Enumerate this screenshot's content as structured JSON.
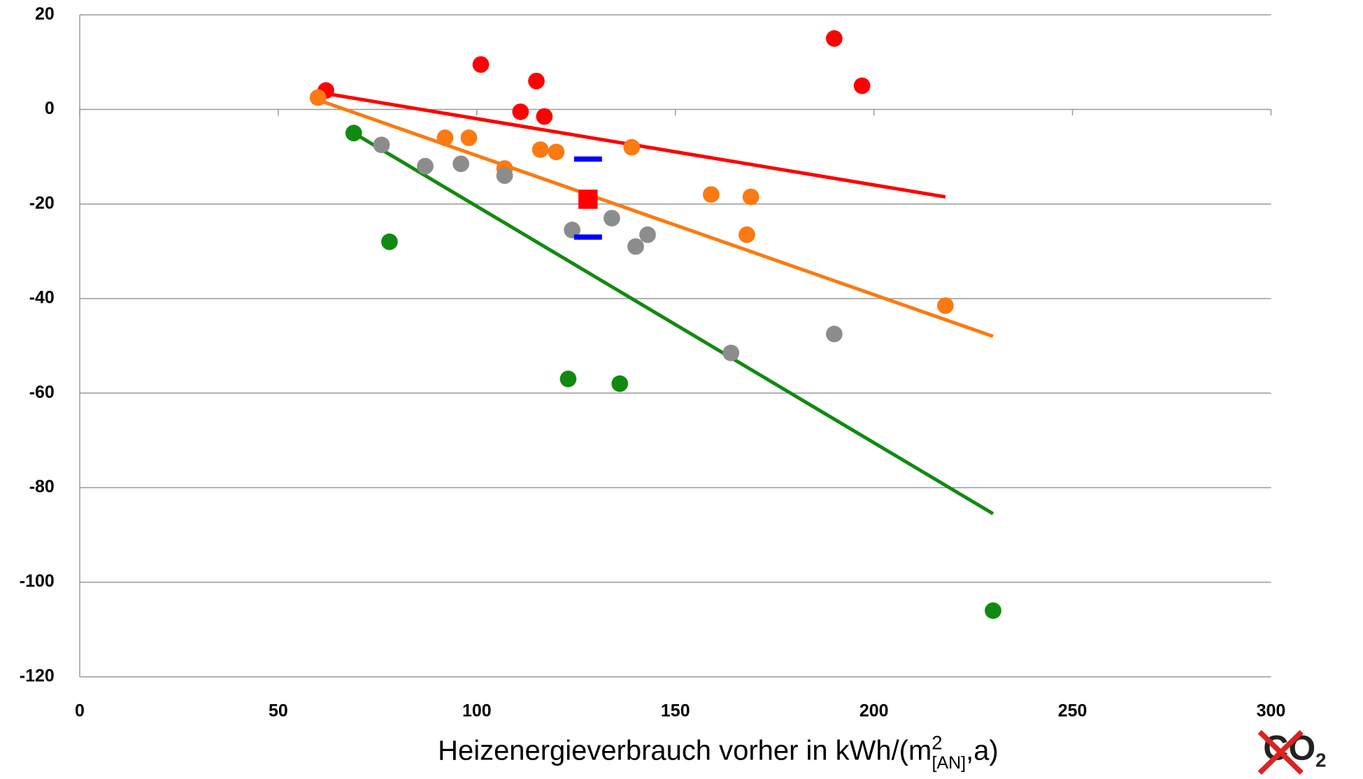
{
  "chart_data": {
    "type": "scatter",
    "x_label": {
      "text": "Heizenergieverbrauch vorher in kWh/(m",
      "sup": "2",
      "sub": "[AN]",
      "end": ",a)"
    },
    "xlim": [
      0,
      300
    ],
    "xticks": [
      0,
      50,
      100,
      150,
      200,
      250,
      300
    ],
    "ylim": [
      -120,
      20
    ],
    "yticks": [
      20,
      0,
      -20,
      -40,
      -60,
      -80,
      -100,
      -120
    ],
    "grid": true,
    "series": [
      {
        "color": "#ff0000",
        "x": [
          62,
          101,
          111,
          115,
          117,
          190,
          197
        ],
        "values": [
          4,
          9.5,
          -0.5,
          6,
          -1.5,
          15,
          5
        ]
      },
      {
        "color": "#fb7a12",
        "x": [
          60,
          92,
          98,
          107,
          116,
          120,
          139,
          159,
          169,
          168,
          218
        ],
        "values": [
          2.5,
          -6,
          -6,
          -12.5,
          -8.5,
          -9,
          -8,
          -18,
          -18.5,
          -26.5,
          -41.5
        ]
      },
      {
        "color": "#8c8c8c",
        "x": [
          76,
          87,
          96,
          107,
          124,
          134,
          140,
          143,
          164,
          190
        ],
        "values": [
          -7.5,
          -12,
          -11.5,
          -14,
          -25.5,
          -23,
          -29,
          -26.5,
          -51.5,
          -47.5
        ]
      },
      {
        "color": "#118a11",
        "x": [
          69,
          78,
          123,
          136,
          230
        ],
        "values": [
          -5,
          -28,
          -57,
          -58,
          -106
        ]
      }
    ],
    "trendlines": [
      {
        "color": "#ff0000",
        "x": [
          61,
          218
        ],
        "values": [
          3.5,
          -18.5
        ]
      },
      {
        "color": "#fb7a12",
        "x": [
          60,
          230
        ],
        "values": [
          2,
          -48
        ]
      },
      {
        "color": "#118a11",
        "x": [
          69,
          230
        ],
        "values": [
          -5,
          -85.5
        ]
      }
    ],
    "markers": [
      {
        "shape": "square",
        "color": "#ff0000",
        "x": [
          128
        ],
        "values": [
          -19
        ]
      },
      {
        "shape": "dash",
        "color": "#0000ff",
        "x": [
          128,
          128
        ],
        "values": [
          -10.5,
          -27
        ]
      }
    ],
    "logo": {
      "text": "CO",
      "sub": "2"
    }
  }
}
